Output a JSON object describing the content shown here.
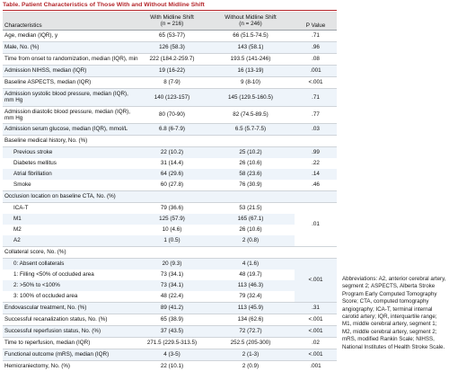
{
  "title": "Table. Patient Characteristics of Those With and Without Midline Shift",
  "headers": {
    "characteristics": "Characteristics",
    "with": "With Midline Shift",
    "with_n": "(n = 216)",
    "without": "Without Midline Shift",
    "without_n": "(n = 246)",
    "p": "P Value"
  },
  "rows": [
    {
      "label": "Age, median (IQR), y",
      "with": "65 (53-77)",
      "without": "66 (51.5-74.5)",
      "p": ".71"
    },
    {
      "label": "Male, No. (%)",
      "with": "126 (58.3)",
      "without": "143 (58.1)",
      "p": ".96"
    },
    {
      "label": "Time from onset to randomization, median (IQR), min",
      "with": "222 (184.2-259.7)",
      "without": "193.5 (141-246)",
      "p": ".08"
    },
    {
      "label": "Admission NIHSS, median (IQR)",
      "with": "19 (16-22)",
      "without": "16 (13-19)",
      "p": ".001"
    },
    {
      "label": "Baseline ASPECTS, median (IQR)",
      "with": "8 (7-9)",
      "without": "9 (8-10)",
      "p": "<.001"
    },
    {
      "label": "Admission systolic blood pressure, median (IQR), mm Hg",
      "with": "140 (123-157)",
      "without": "145 (129.5-160.5)",
      "p": ".71"
    },
    {
      "label": "Admission diastolic blood pressure, median (IQR), mm Hg",
      "with": "80 (70-90)",
      "without": "82 (74.5-89.5)",
      "p": ".77"
    },
    {
      "label": "Admission serum glucose, median (IQR), mmol/L",
      "with": "6.8 (6-7.9)",
      "without": "6.5 (5.7-7.5)",
      "p": ".03"
    }
  ],
  "history": {
    "label": "Baseline medical history, No. (%)",
    "items": [
      {
        "label": "Previous stroke",
        "with": "22 (10.2)",
        "without": "25 (10.2)",
        "p": ".99"
      },
      {
        "label": "Diabetes mellitus",
        "with": "31 (14.4)",
        "without": "26 (10.6)",
        "p": ".22"
      },
      {
        "label": "Atrial fibrillation",
        "with": "64 (29.6)",
        "without": "58 (23.6)",
        "p": ".14"
      },
      {
        "label": "Smoke",
        "with": "60 (27.8)",
        "without": "76 (30.9)",
        "p": ".46"
      }
    ]
  },
  "occlusion": {
    "label": "Occlusion location on baseline CTA, No. (%)",
    "p": ".01",
    "items": [
      {
        "label": "ICA-T",
        "with": "79 (36.6)",
        "without": "53 (21.5)"
      },
      {
        "label": "M1",
        "with": "125 (57.9)",
        "without": "165 (67.1)"
      },
      {
        "label": "M2",
        "with": "10 (4.6)",
        "without": "26 (10.6)"
      },
      {
        "label": "A2",
        "with": "1 (0.5)",
        "without": "2 (0.8)"
      }
    ]
  },
  "collateral": {
    "label": "Collateral score, No. (%)",
    "p": "<.001",
    "items": [
      {
        "label": "0: Absent collaterals",
        "with": "20 (9.3)",
        "without": "4 (1.6)"
      },
      {
        "label": "1: Filling <50% of occluded area",
        "with": "73 (34.1)",
        "without": "48 (19.7)"
      },
      {
        "label": "2: >50% to <100%",
        "with": "73 (34.1)",
        "without": "113 (46.3)"
      },
      {
        "label": "3: 100% of occluded area",
        "with": "48 (22.4)",
        "without": "79 (32.4)"
      }
    ]
  },
  "rows2": [
    {
      "label": "Endovascular treatment, No. (%)",
      "with": "89 (41.2)",
      "without": "113 (45.9)",
      "p": ".31"
    },
    {
      "label": "Successful recanalization status, No. (%)",
      "with": "65 (38.9)",
      "without": "134 (62.6)",
      "p": "<.001"
    },
    {
      "label": "Successful reperfusion status, No. (%)",
      "with": "37 (43.5)",
      "without": "72 (72.7)",
      "p": "<.001"
    },
    {
      "label": "Time to reperfusion, median (IQR)",
      "with": "271.5 (229.5-313.5)",
      "without": "252.5 (205-300)",
      "p": ".02"
    },
    {
      "label": "Functional outcome (mRS), median (IQR)",
      "with": "4 (3-5)",
      "without": "2 (1-3)",
      "p": "<.001"
    },
    {
      "label": "Hemicraniectomy, No. (%)",
      "with": "22 (10.1)",
      "without": "2 (0.9)",
      "p": ".001"
    }
  ],
  "abbreviations": "Abbreviations: A2, anterior cerebral artery, segment 2; ASPECTS, Alberta Stroke Program Early Computed Tomography Score; CTA, computed tomography angiography; ICA-T, terminal internal carotid artery; IQR, interquartile range; M1, middle cerebral artery, segment 1; M2, middle cerebral artery, segment 2; mRS, modified Rankin Scale; NIHSS, National Institutes of Health Stroke Scale."
}
